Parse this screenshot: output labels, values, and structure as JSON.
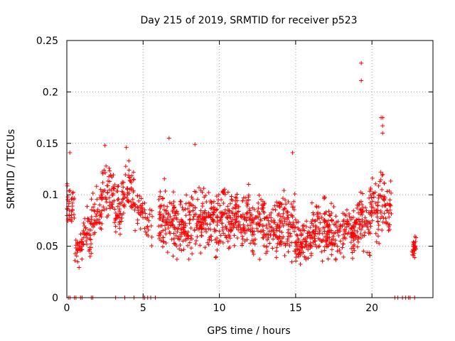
{
  "chart_data": {
    "type": "scatter",
    "title": "Day 215 of 2019, SRMTID for receiver p523",
    "xlabel": "GPS time / hours",
    "ylabel": "SRMTID / TECUs",
    "xlim": [
      0,
      24
    ],
    "ylim": [
      0,
      0.25
    ],
    "x_ticks": [
      0,
      5,
      10,
      15,
      20
    ],
    "x_tick_labels": [
      "0",
      "5",
      "10",
      "15",
      "20"
    ],
    "y_ticks": [
      0,
      0.05,
      0.1,
      0.15,
      0.2,
      0.25
    ],
    "y_tick_labels": [
      "0",
      "0.05",
      "0.1",
      "0.15",
      "0.2",
      "0.25"
    ],
    "grid": true,
    "marker": "+",
    "colors": {
      "points": "#ff0000",
      "grid": "#a0a0a0",
      "axis": "#000000"
    },
    "zero_value_times": [
      0.1,
      0.2,
      0.5,
      0.6,
      0.9,
      1.0,
      1.6,
      1.7,
      3.2,
      3.8,
      4.4,
      5.0,
      5.1,
      5.3,
      5.5,
      5.8,
      21.5,
      21.7,
      22.0,
      22.2,
      22.4,
      22.5,
      22.8
    ],
    "outliers": [
      {
        "x": 19.3,
        "y": 0.228
      },
      {
        "x": 19.3,
        "y": 0.211
      },
      {
        "x": 20.7,
        "y": 0.175
      },
      {
        "x": 20.6,
        "y": 0.175
      },
      {
        "x": 20.7,
        "y": 0.167
      },
      {
        "x": 20.7,
        "y": 0.16
      },
      {
        "x": 6.7,
        "y": 0.155
      },
      {
        "x": 8.4,
        "y": 0.149
      },
      {
        "x": 14.8,
        "y": 0.141
      },
      {
        "x": 2.5,
        "y": 0.148
      },
      {
        "x": 3.9,
        "y": 0.146
      },
      {
        "x": 0.2,
        "y": 0.141
      }
    ],
    "series": [
      {
        "name": "SRMTID",
        "description": "dense point cloud; per-interval value range in TECU",
        "bands": [
          {
            "x_start": 0.0,
            "x_end": 0.5,
            "y_min": 0.05,
            "y_max": 0.125,
            "count": 35
          },
          {
            "x_start": 0.5,
            "x_end": 1.0,
            "y_min": 0.025,
            "y_max": 0.075,
            "count": 30
          },
          {
            "x_start": 1.0,
            "x_end": 1.6,
            "y_min": 0.03,
            "y_max": 0.09,
            "count": 40
          },
          {
            "x_start": 1.6,
            "x_end": 2.3,
            "y_min": 0.05,
            "y_max": 0.115,
            "count": 45
          },
          {
            "x_start": 2.3,
            "x_end": 3.1,
            "y_min": 0.07,
            "y_max": 0.14,
            "count": 55
          },
          {
            "x_start": 3.1,
            "x_end": 3.6,
            "y_min": 0.05,
            "y_max": 0.12,
            "count": 35
          },
          {
            "x_start": 3.6,
            "x_end": 4.4,
            "y_min": 0.07,
            "y_max": 0.135,
            "count": 55
          },
          {
            "x_start": 4.4,
            "x_end": 5.1,
            "y_min": 0.06,
            "y_max": 0.11,
            "count": 30
          },
          {
            "x_start": 5.1,
            "x_end": 5.6,
            "y_min": 0.045,
            "y_max": 0.1,
            "count": 20
          },
          {
            "x_start": 6.0,
            "x_end": 7.0,
            "y_min": 0.035,
            "y_max": 0.125,
            "count": 80
          },
          {
            "x_start": 7.0,
            "x_end": 8.0,
            "y_min": 0.03,
            "y_max": 0.11,
            "count": 80
          },
          {
            "x_start": 8.0,
            "x_end": 9.0,
            "y_min": 0.03,
            "y_max": 0.12,
            "count": 80
          },
          {
            "x_start": 9.0,
            "x_end": 10.0,
            "y_min": 0.03,
            "y_max": 0.115,
            "count": 80
          },
          {
            "x_start": 10.0,
            "x_end": 11.0,
            "y_min": 0.035,
            "y_max": 0.12,
            "count": 80
          },
          {
            "x_start": 11.0,
            "x_end": 12.0,
            "y_min": 0.035,
            "y_max": 0.125,
            "count": 80
          },
          {
            "x_start": 12.0,
            "x_end": 13.0,
            "y_min": 0.03,
            "y_max": 0.11,
            "count": 75
          },
          {
            "x_start": 13.0,
            "x_end": 14.0,
            "y_min": 0.025,
            "y_max": 0.105,
            "count": 75
          },
          {
            "x_start": 14.0,
            "x_end": 15.0,
            "y_min": 0.025,
            "y_max": 0.115,
            "count": 75
          },
          {
            "x_start": 15.0,
            "x_end": 16.0,
            "y_min": 0.025,
            "y_max": 0.085,
            "count": 80
          },
          {
            "x_start": 16.0,
            "x_end": 17.0,
            "y_min": 0.025,
            "y_max": 0.11,
            "count": 80
          },
          {
            "x_start": 17.0,
            "x_end": 18.0,
            "y_min": 0.025,
            "y_max": 0.1,
            "count": 80
          },
          {
            "x_start": 18.0,
            "x_end": 19.0,
            "y_min": 0.025,
            "y_max": 0.1,
            "count": 80
          },
          {
            "x_start": 19.0,
            "x_end": 20.0,
            "y_min": 0.03,
            "y_max": 0.12,
            "count": 80
          },
          {
            "x_start": 20.0,
            "x_end": 21.3,
            "y_min": 0.045,
            "y_max": 0.13,
            "count": 90
          },
          {
            "x_start": 22.6,
            "x_end": 22.9,
            "y_min": 0.03,
            "y_max": 0.07,
            "count": 25
          }
        ]
      }
    ]
  }
}
